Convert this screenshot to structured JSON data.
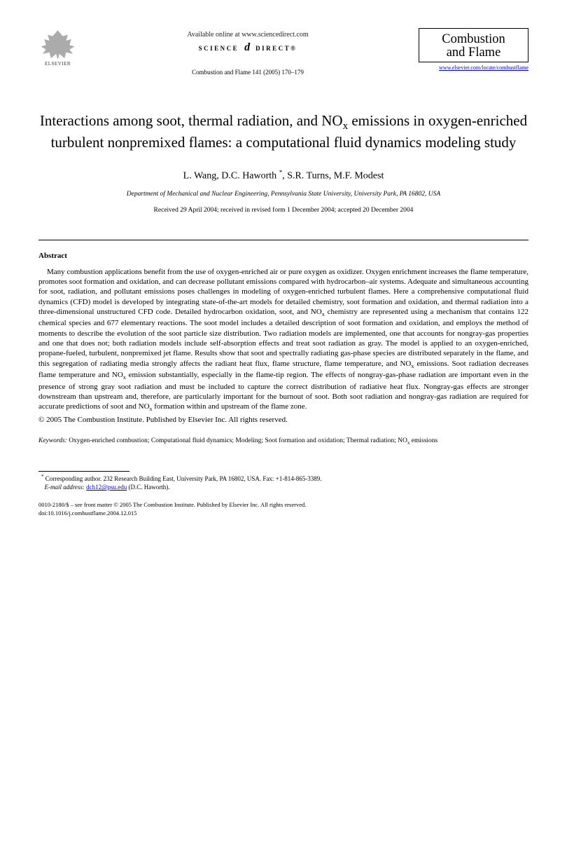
{
  "header": {
    "publisher_name": "ELSEVIER",
    "available_online": "Available online at www.sciencedirect.com",
    "science_direct_left": "SCIENCE",
    "science_direct_right": "DIRECT®",
    "citation": "Combustion and Flame 141 (2005) 170–179",
    "journal_title_line1": "Combustion",
    "journal_title_line2": "and Flame",
    "journal_url": "www.elsevier.com/locate/combustflame"
  },
  "article": {
    "title_html": "Interactions among soot, thermal radiation, and NO<sub>x</sub> emissions in oxygen-enriched turbulent nonpremixed flames: a computational fluid dynamics modeling study",
    "authors_html": "L. Wang, D.C. Haworth <sup>*</sup>, S.R. Turns, M.F. Modest",
    "affiliation": "Department of Mechanical and Nuclear Engineering, Pennsylvania State University, University Park, PA 16802, USA",
    "dates": "Received 29 April 2004; received in revised form 1 December 2004; accepted 20 December 2004"
  },
  "abstract": {
    "heading": "Abstract",
    "body_html": "Many combustion applications benefit from the use of oxygen-enriched air or pure oxygen as oxidizer. Oxygen enrichment increases the flame temperature, promotes soot formation and oxidation, and can decrease pollutant emissions compared with hydrocarbon–air systems. Adequate and simultaneous accounting for soot, radiation, and pollutant emissions poses challenges in modeling of oxygen-enriched turbulent flames. Here a comprehensive computational fluid dynamics (CFD) model is developed by integrating state-of-the-art models for detailed chemistry, soot formation and oxidation, and thermal radiation into a three-dimensional unstructured CFD code. Detailed hydrocarbon oxidation, soot, and NO<sub>x</sub> chemistry are represented using a mechanism that contains 122 chemical species and 677 elementary reactions. The soot model includes a detailed description of soot formation and oxidation, and employs the method of moments to describe the evolution of the soot particle size distribution. Two radiation models are implemented, one that accounts for nongray-gas properties and one that does not; both radiation models include self-absorption effects and treat soot radiation as gray. The model is applied to an oxygen-enriched, propane-fueled, turbulent, nonpremixed jet flame. Results show that soot and spectrally radiating gas-phase species are distributed separately in the flame, and this segregation of radiating media strongly affects the radiant heat flux, flame structure, flame temperature, and NO<sub>x</sub> emissions. Soot radiation decreases flame temperature and NO<sub>x</sub> emission substantially, especially in the flame-tip region. The effects of nongray-gas-phase radiation are important even in the presence of strong gray soot radiation and must be included to capture the correct distribution of radiative heat flux. Nongray-gas effects are stronger downstream than upstream and, therefore, are particularly important for the burnout of soot. Both soot radiation and nongray-gas radiation are required for accurate predictions of soot and NO<sub>x</sub> formation within and upstream of the flame zone.",
    "copyright": "© 2005 The Combustion Institute. Published by Elsevier Inc. All rights reserved."
  },
  "keywords": {
    "label": "Keywords:",
    "text_html": " Oxygen-enriched combustion; Computational fluid dynamics; Modeling; Soot formation and oxidation; Thermal radiation; NO<sub>x</sub> emissions"
  },
  "footnote": {
    "corresponding_html": "<sup>*</sup> Corresponding author. 232 Research Building East, University Park, PA 16802, USA. Fax: +1-814-865-3389.",
    "email_label": "E-mail address:",
    "email": "dch12@psu.edu",
    "email_owner": "(D.C. Haworth)."
  },
  "footer": {
    "line1": "0010-2180/$ – see front matter  © 2005 The Combustion Institute. Published by Elsevier Inc. All rights reserved.",
    "line2": "doi:10.1016/j.combustflame.2004.12.015"
  }
}
